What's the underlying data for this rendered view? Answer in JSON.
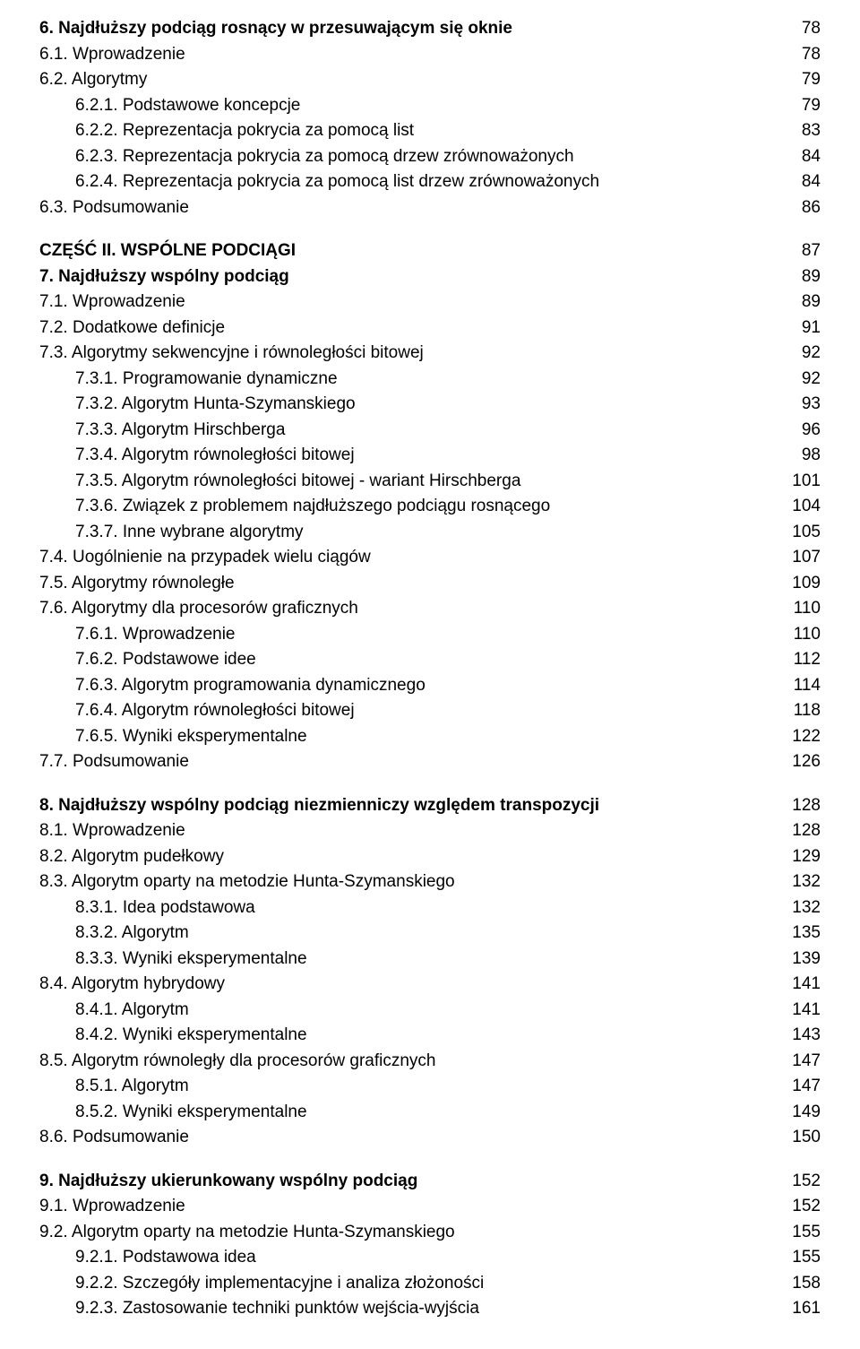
{
  "toc": [
    {
      "label": "6. Najdłuższy podciąg rosnący w przesuwającym się oknie",
      "page": "78",
      "bold": true,
      "indent": 0
    },
    {
      "label": "6.1. Wprowadzenie",
      "page": "78",
      "bold": false,
      "indent": 0
    },
    {
      "label": "6.2. Algorytmy",
      "page": "79",
      "bold": false,
      "indent": 0
    },
    {
      "label": "6.2.1. Podstawowe koncepcje",
      "page": "79",
      "bold": false,
      "indent": 1
    },
    {
      "label": "6.2.2. Reprezentacja pokrycia za pomocą list",
      "page": "83",
      "bold": false,
      "indent": 1
    },
    {
      "label": "6.2.3. Reprezentacja pokrycia za pomocą drzew zrównoważonych",
      "page": "84",
      "bold": false,
      "indent": 1
    },
    {
      "label": "6.2.4. Reprezentacja pokrycia za pomocą list drzew zrównoważonych",
      "page": "84",
      "bold": false,
      "indent": 1
    },
    {
      "label": "6.3. Podsumowanie",
      "page": "86",
      "bold": false,
      "indent": 0
    },
    {
      "gap": true
    },
    {
      "label": "CZĘŚĆ II. WSPÓLNE PODCIĄGI",
      "page": "87",
      "bold": true,
      "indent": 0
    },
    {
      "label": "7. Najdłuższy wspólny podciąg",
      "page": "89",
      "bold": true,
      "indent": 0
    },
    {
      "label": "7.1. Wprowadzenie",
      "page": "89",
      "bold": false,
      "indent": 0
    },
    {
      "label": "7.2. Dodatkowe definicje",
      "page": "91",
      "bold": false,
      "indent": 0
    },
    {
      "label": "7.3. Algorytmy sekwencyjne i równoległości bitowej",
      "page": "92",
      "bold": false,
      "indent": 0
    },
    {
      "label": "7.3.1. Programowanie dynamiczne",
      "page": "92",
      "bold": false,
      "indent": 1
    },
    {
      "label": "7.3.2. Algorytm Hunta-Szymanskiego",
      "page": "93",
      "bold": false,
      "indent": 1
    },
    {
      "label": "7.3.3. Algorytm Hirschberga",
      "page": "96",
      "bold": false,
      "indent": 1
    },
    {
      "label": "7.3.4. Algorytm równoległości bitowej",
      "page": "98",
      "bold": false,
      "indent": 1
    },
    {
      "label": "7.3.5. Algorytm równoległości bitowej - wariant Hirschberga",
      "page": "101",
      "bold": false,
      "indent": 1
    },
    {
      "label": "7.3.6. Związek z problemem najdłuższego podciągu rosnącego",
      "page": "104",
      "bold": false,
      "indent": 1
    },
    {
      "label": "7.3.7. Inne wybrane algorytmy",
      "page": "105",
      "bold": false,
      "indent": 1
    },
    {
      "label": "7.4. Uogólnienie na przypadek wielu ciągów",
      "page": "107",
      "bold": false,
      "indent": 0
    },
    {
      "label": "7.5. Algorytmy równoległe",
      "page": "109",
      "bold": false,
      "indent": 0
    },
    {
      "label": "7.6. Algorytmy dla procesorów graficznych",
      "page": "110",
      "bold": false,
      "indent": 0
    },
    {
      "label": "7.6.1. Wprowadzenie",
      "page": "110",
      "bold": false,
      "indent": 1
    },
    {
      "label": "7.6.2. Podstawowe idee",
      "page": "112",
      "bold": false,
      "indent": 1
    },
    {
      "label": "7.6.3. Algorytm programowania dynamicznego",
      "page": "114",
      "bold": false,
      "indent": 1
    },
    {
      "label": "7.6.4. Algorytm równoległości bitowej",
      "page": "118",
      "bold": false,
      "indent": 1
    },
    {
      "label": "7.6.5. Wyniki eksperymentalne",
      "page": "122",
      "bold": false,
      "indent": 1
    },
    {
      "label": "7.7. Podsumowanie",
      "page": "126",
      "bold": false,
      "indent": 0
    },
    {
      "gap": true
    },
    {
      "label": "8. Najdłuższy wspólny podciąg niezmienniczy względem transpozycji",
      "page": "128",
      "bold": true,
      "indent": 0
    },
    {
      "label": "8.1. Wprowadzenie",
      "page": "128",
      "bold": false,
      "indent": 0
    },
    {
      "label": "8.2. Algorytm pudełkowy",
      "page": "129",
      "bold": false,
      "indent": 0
    },
    {
      "label": "8.3. Algorytm oparty na metodzie Hunta-Szymanskiego",
      "page": "132",
      "bold": false,
      "indent": 0
    },
    {
      "label": "8.3.1. Idea podstawowa",
      "page": "132",
      "bold": false,
      "indent": 1
    },
    {
      "label": "8.3.2. Algorytm",
      "page": "135",
      "bold": false,
      "indent": 1
    },
    {
      "label": "8.3.3. Wyniki eksperymentalne",
      "page": "139",
      "bold": false,
      "indent": 1
    },
    {
      "label": "8.4. Algorytm hybrydowy",
      "page": "141",
      "bold": false,
      "indent": 0
    },
    {
      "label": "8.4.1. Algorytm",
      "page": "141",
      "bold": false,
      "indent": 1
    },
    {
      "label": "8.4.2. Wyniki eksperymentalne",
      "page": "143",
      "bold": false,
      "indent": 1
    },
    {
      "label": "8.5. Algorytm równoległy dla procesorów graficznych",
      "page": "147",
      "bold": false,
      "indent": 0
    },
    {
      "label": "8.5.1. Algorytm",
      "page": "147",
      "bold": false,
      "indent": 1
    },
    {
      "label": "8.5.2. Wyniki eksperymentalne",
      "page": "149",
      "bold": false,
      "indent": 1
    },
    {
      "label": "8.6. Podsumowanie",
      "page": "150",
      "bold": false,
      "indent": 0
    },
    {
      "gap": true
    },
    {
      "label": "9. Najdłuższy ukierunkowany wspólny podciąg",
      "page": "152",
      "bold": true,
      "indent": 0
    },
    {
      "label": "9.1. Wprowadzenie",
      "page": "152",
      "bold": false,
      "indent": 0
    },
    {
      "label": "9.2. Algorytm oparty na metodzie Hunta-Szymanskiego",
      "page": "155",
      "bold": false,
      "indent": 0
    },
    {
      "label": "9.2.1. Podstawowa idea",
      "page": "155",
      "bold": false,
      "indent": 1
    },
    {
      "label": "9.2.2. Szczegóły implementacyjne i analiza złożoności",
      "page": "158",
      "bold": false,
      "indent": 1
    },
    {
      "label": "9.2.3. Zastosowanie techniki punktów wejścia-wyjścia",
      "page": "161",
      "bold": false,
      "indent": 1
    }
  ]
}
